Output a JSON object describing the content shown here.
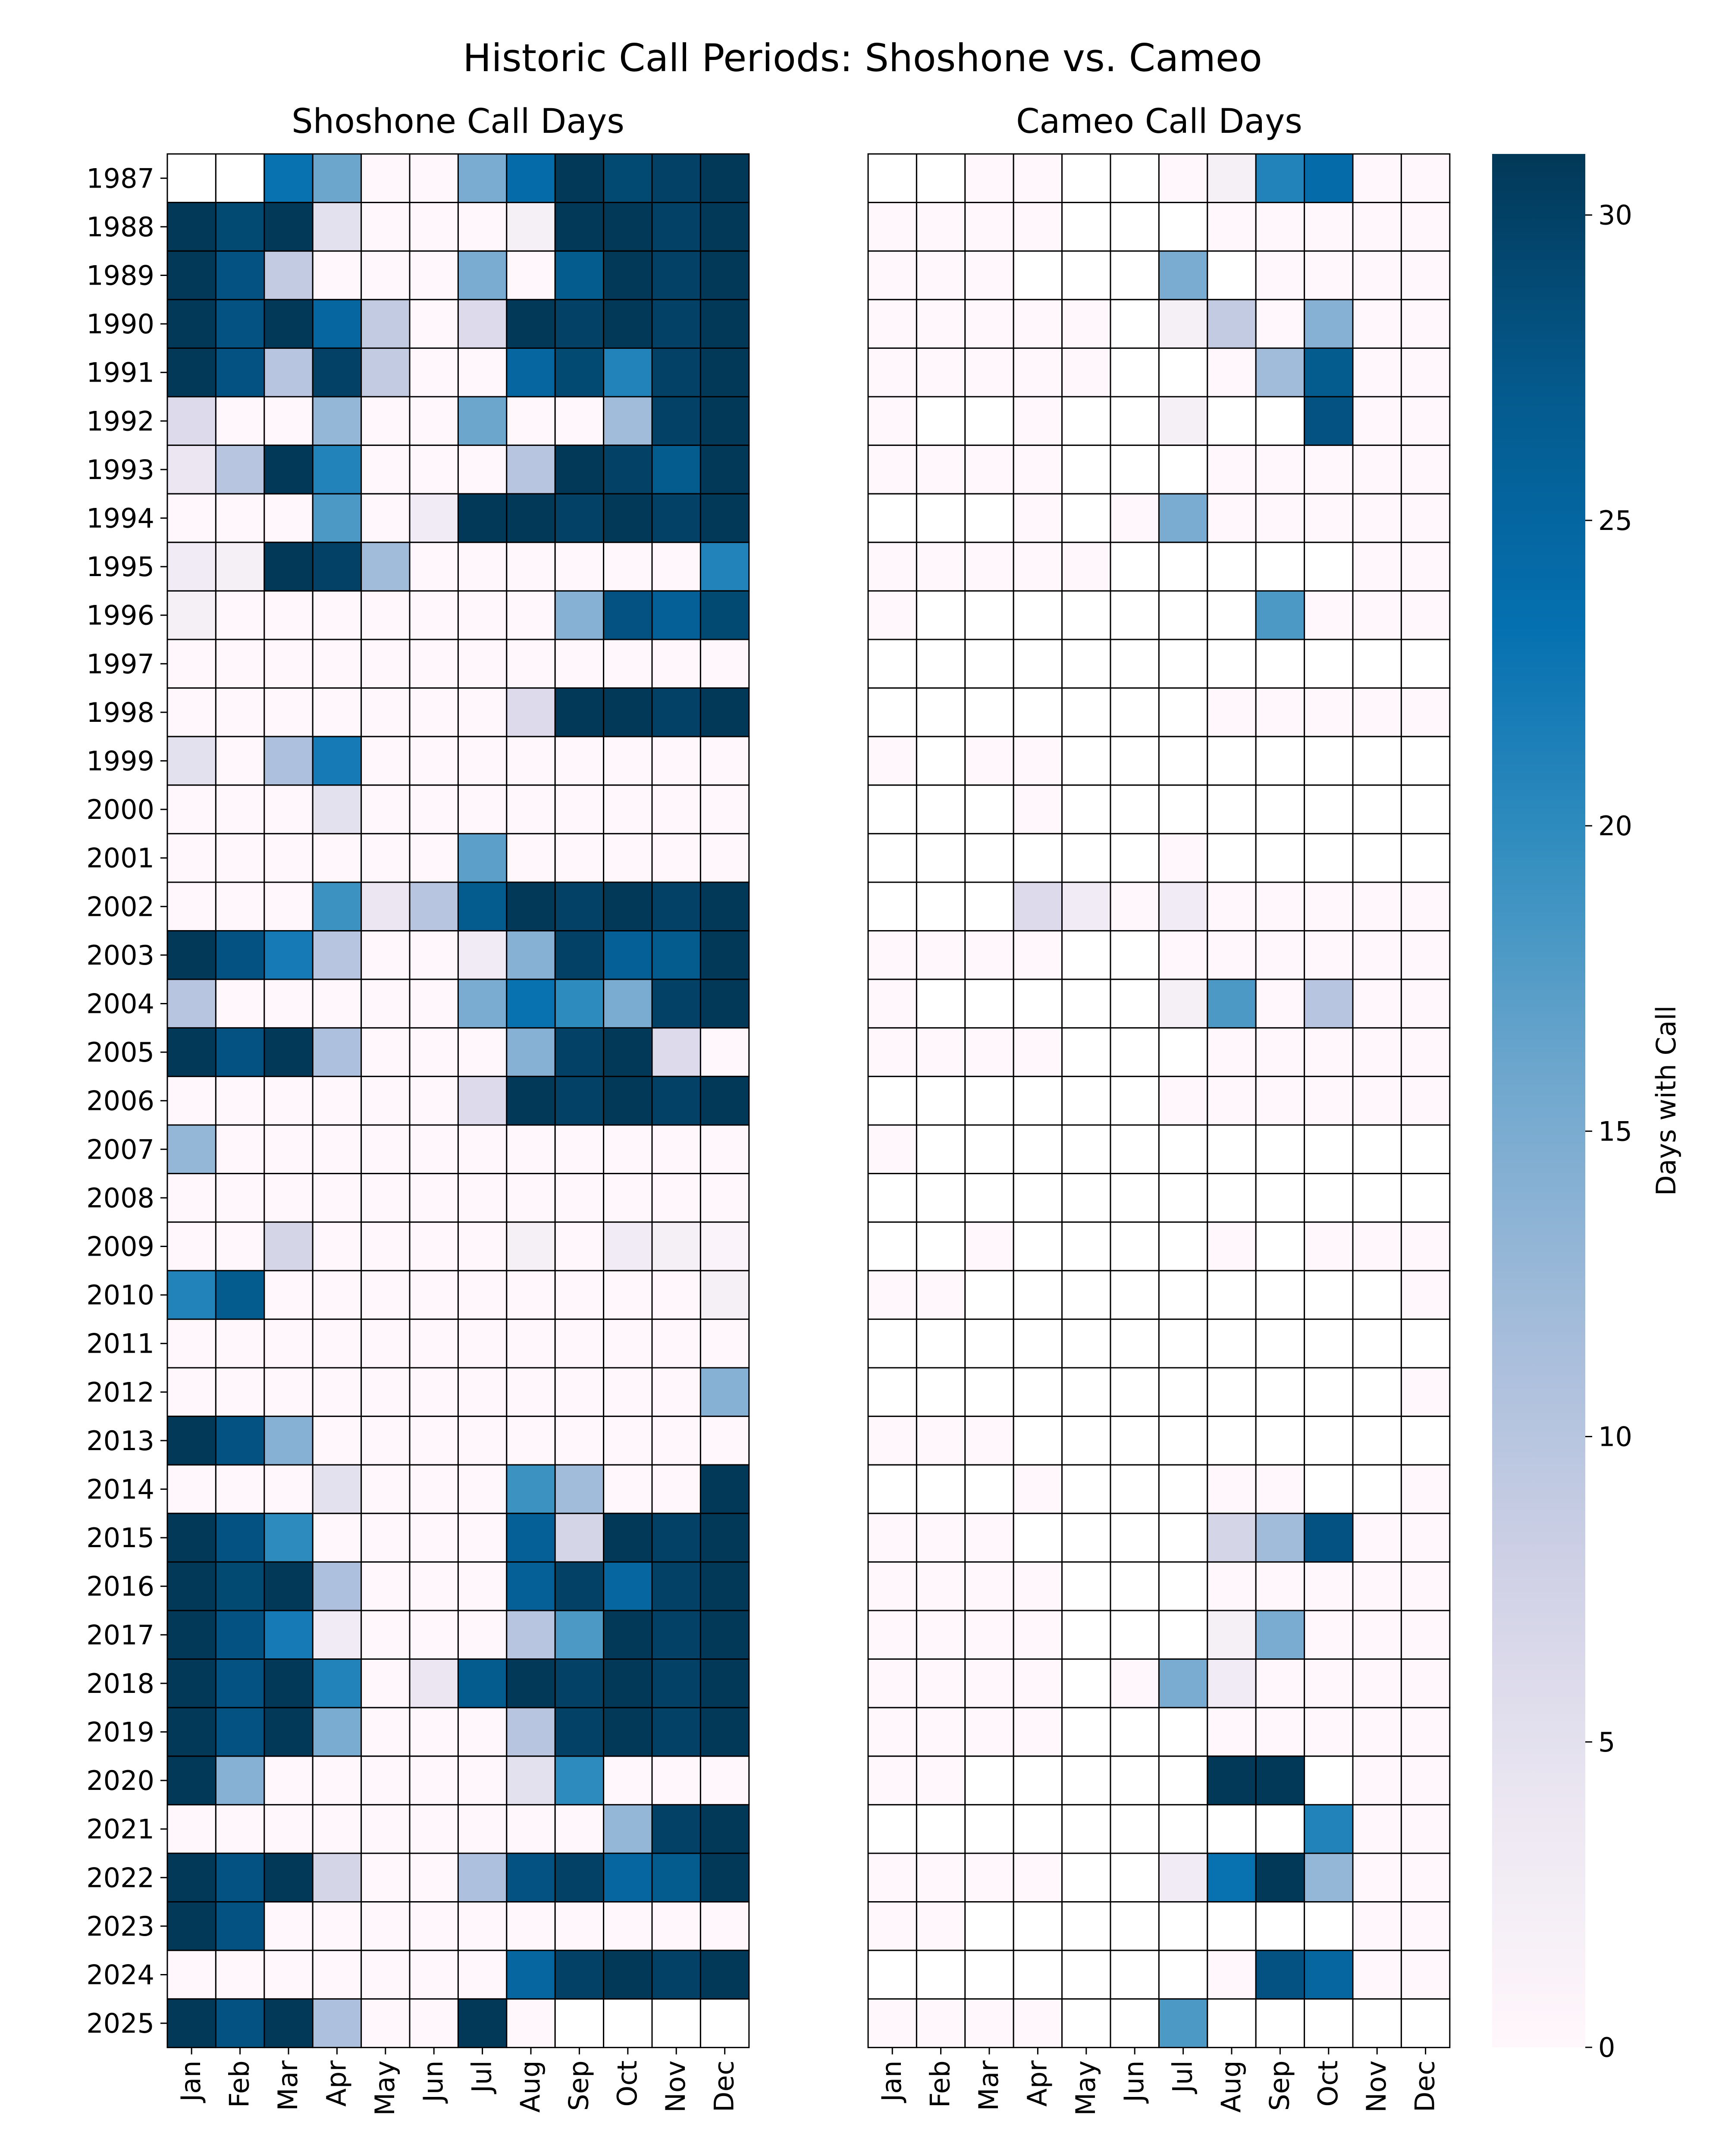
{
  "chart_data": {
    "type": "heatmap",
    "title": "Historic Call Periods: Shoshone vs. Cameo",
    "months": [
      "Jan",
      "Feb",
      "Mar",
      "Apr",
      "May",
      "Jun",
      "Jul",
      "Aug",
      "Sep",
      "Oct",
      "Nov",
      "Dec"
    ],
    "years": [
      "1987",
      "1988",
      "1989",
      "1990",
      "1991",
      "1992",
      "1993",
      "1994",
      "1995",
      "1996",
      "1997",
      "1998",
      "1999",
      "2000",
      "2001",
      "2002",
      "2003",
      "2004",
      "2005",
      "2006",
      "2007",
      "2008",
      "2009",
      "2010",
      "2011",
      "2012",
      "2013",
      "2014",
      "2015",
      "2016",
      "2017",
      "2018",
      "2019",
      "2020",
      "2021",
      "2022",
      "2023",
      "2024",
      "2025"
    ],
    "colorbar": {
      "label": "Days with Call",
      "range": [
        0,
        31
      ],
      "ticks": [
        0,
        5,
        10,
        15,
        20,
        25,
        30
      ],
      "colors": [
        "#fff7fb",
        "#ece7f2",
        "#d0d1e6",
        "#a6bddb",
        "#74a9cf",
        "#3690c0",
        "#0570b0",
        "#045a8d",
        "#023858"
      ]
    },
    "panels": [
      {
        "title": "Shoshone Call Days",
        "values": [
          [
            null,
            null,
            23,
            16,
            0,
            0,
            15,
            24,
            31,
            29,
            30,
            31
          ],
          [
            31,
            29,
            31,
            5,
            0,
            0,
            0,
            2,
            31,
            31,
            30,
            31
          ],
          [
            31,
            28,
            9,
            0,
            0,
            0,
            15,
            0,
            27,
            31,
            30,
            31
          ],
          [
            31,
            28,
            31,
            25,
            9,
            0,
            6,
            31,
            30,
            31,
            30,
            31
          ],
          [
            31,
            28,
            10,
            30,
            9,
            0,
            0,
            25,
            29,
            21,
            30,
            31
          ],
          [
            6,
            0,
            0,
            13,
            0,
            0,
            16,
            0,
            0,
            12,
            30,
            31
          ],
          [
            4,
            10,
            31,
            21,
            0,
            0,
            0,
            10,
            31,
            30,
            27,
            31
          ],
          [
            0,
            0,
            0,
            18,
            0,
            3,
            31,
            31,
            30,
            31,
            30,
            31
          ],
          [
            3,
            2,
            31,
            30,
            12,
            0,
            0,
            0,
            0,
            0,
            0,
            21
          ],
          [
            2,
            0,
            0,
            0,
            0,
            0,
            0,
            0,
            14,
            28,
            26,
            29
          ],
          [
            0,
            0,
            0,
            0,
            0,
            0,
            0,
            0,
            0,
            0,
            0,
            0
          ],
          [
            0,
            0,
            0,
            0,
            0,
            0,
            0,
            6,
            31,
            31,
            30,
            31
          ],
          [
            5,
            0,
            11,
            22,
            0,
            0,
            0,
            0,
            0,
            0,
            0,
            0
          ],
          [
            0,
            0,
            0,
            5,
            0,
            0,
            0,
            0,
            0,
            0,
            0,
            0
          ],
          [
            0,
            0,
            0,
            0,
            0,
            0,
            17,
            0,
            0,
            0,
            0,
            0
          ],
          [
            0,
            0,
            0,
            19,
            4,
            10,
            27,
            31,
            30,
            31,
            30,
            31
          ],
          [
            31,
            28,
            22,
            10,
            0,
            0,
            3,
            14,
            30,
            26,
            27,
            31
          ],
          [
            10,
            0,
            0,
            0,
            0,
            0,
            15,
            23,
            20,
            15,
            30,
            31
          ],
          [
            31,
            28,
            31,
            11,
            0,
            0,
            0,
            14,
            30,
            31,
            6,
            0
          ],
          [
            0,
            0,
            0,
            0,
            0,
            0,
            6,
            31,
            30,
            31,
            30,
            31
          ],
          [
            13,
            0,
            0,
            0,
            0,
            0,
            0,
            0,
            0,
            0,
            0,
            0
          ],
          [
            0,
            0,
            0,
            0,
            0,
            0,
            0,
            0,
            0,
            0,
            0,
            0
          ],
          [
            0,
            0,
            7,
            0,
            0,
            0,
            0,
            2,
            0,
            3,
            2,
            1
          ],
          [
            21,
            27,
            0,
            0,
            0,
            0,
            0,
            0,
            0,
            0,
            0,
            2
          ],
          [
            0,
            0,
            0,
            0,
            0,
            0,
            0,
            0,
            0,
            0,
            0,
            0
          ],
          [
            0,
            0,
            0,
            0,
            0,
            0,
            0,
            0,
            0,
            0,
            0,
            14
          ],
          [
            31,
            28,
            14,
            0,
            0,
            0,
            0,
            0,
            0,
            0,
            0,
            0
          ],
          [
            0,
            0,
            0,
            5,
            0,
            0,
            0,
            19,
            12,
            0,
            0,
            31
          ],
          [
            31,
            28,
            20,
            0,
            0,
            0,
            0,
            26,
            7,
            31,
            30,
            31
          ],
          [
            31,
            29,
            31,
            11,
            0,
            0,
            0,
            26,
            30,
            25,
            30,
            31
          ],
          [
            31,
            28,
            22,
            3,
            0,
            0,
            0,
            10,
            18,
            31,
            30,
            31
          ],
          [
            31,
            28,
            31,
            21,
            0,
            4,
            27,
            31,
            30,
            31,
            30,
            31
          ],
          [
            31,
            28,
            31,
            15,
            0,
            0,
            0,
            10,
            30,
            31,
            30,
            31
          ],
          [
            31,
            14,
            0,
            0,
            0,
            0,
            0,
            5,
            20,
            0,
            0,
            0
          ],
          [
            0,
            0,
            0,
            0,
            0,
            0,
            0,
            0,
            0,
            13,
            30,
            31
          ],
          [
            31,
            28,
            31,
            7,
            0,
            0,
            11,
            28,
            30,
            25,
            27,
            31
          ],
          [
            31,
            28,
            0,
            0,
            0,
            0,
            0,
            0,
            0,
            0,
            0,
            0
          ],
          [
            0,
            0,
            0,
            0,
            0,
            0,
            0,
            25,
            30,
            31,
            30,
            31
          ],
          [
            31,
            28,
            31,
            11,
            0,
            0,
            31,
            0,
            null,
            null,
            null,
            null
          ]
        ]
      },
      {
        "title": "Cameo Call Days",
        "values": [
          [
            null,
            null,
            0,
            0,
            null,
            null,
            0,
            2,
            21,
            24,
            0,
            0
          ],
          [
            0,
            0,
            0,
            0,
            null,
            null,
            null,
            0,
            0,
            0,
            0,
            0
          ],
          [
            0,
            0,
            0,
            null,
            null,
            null,
            15,
            null,
            0,
            0,
            0,
            0
          ],
          [
            0,
            0,
            0,
            0,
            0,
            null,
            2,
            9,
            0,
            14,
            0,
            0
          ],
          [
            0,
            0,
            0,
            0,
            0,
            null,
            null,
            0,
            12,
            27,
            0,
            0
          ],
          [
            0,
            null,
            null,
            0,
            null,
            null,
            2,
            null,
            null,
            28,
            0,
            0
          ],
          [
            0,
            0,
            0,
            0,
            null,
            null,
            null,
            0,
            0,
            0,
            0,
            0
          ],
          [
            null,
            null,
            null,
            0,
            null,
            0,
            15,
            0,
            0,
            0,
            0,
            0
          ],
          [
            0,
            0,
            0,
            0,
            0,
            null,
            null,
            null,
            null,
            null,
            0,
            0
          ],
          [
            0,
            null,
            null,
            null,
            null,
            null,
            null,
            null,
            18,
            0,
            0,
            0
          ],
          [
            null,
            null,
            null,
            null,
            null,
            null,
            null,
            null,
            null,
            null,
            null,
            null
          ],
          [
            null,
            null,
            null,
            null,
            null,
            null,
            null,
            0,
            0,
            0,
            0,
            0
          ],
          [
            0,
            null,
            0,
            0,
            null,
            null,
            null,
            null,
            null,
            null,
            null,
            null
          ],
          [
            null,
            null,
            null,
            0,
            null,
            null,
            null,
            null,
            null,
            null,
            null,
            null
          ],
          [
            null,
            null,
            null,
            null,
            null,
            null,
            0,
            null,
            null,
            null,
            null,
            null
          ],
          [
            null,
            null,
            null,
            6,
            3,
            0,
            3,
            0,
            0,
            0,
            0,
            0
          ],
          [
            0,
            0,
            0,
            0,
            null,
            null,
            0,
            0,
            0,
            0,
            0,
            0
          ],
          [
            0,
            null,
            null,
            null,
            null,
            null,
            2,
            18,
            0,
            10,
            0,
            0
          ],
          [
            0,
            0,
            0,
            0,
            null,
            null,
            null,
            0,
            0,
            0,
            0,
            0
          ],
          [
            null,
            null,
            null,
            null,
            null,
            null,
            0,
            0,
            0,
            0,
            0,
            0
          ],
          [
            0,
            null,
            null,
            null,
            null,
            null,
            null,
            null,
            null,
            null,
            null,
            null
          ],
          [
            null,
            null,
            null,
            null,
            null,
            null,
            null,
            null,
            null,
            null,
            null,
            null
          ],
          [
            null,
            null,
            0,
            null,
            null,
            null,
            null,
            0,
            null,
            0,
            0,
            0
          ],
          [
            0,
            0,
            null,
            null,
            null,
            null,
            null,
            null,
            null,
            null,
            null,
            0
          ],
          [
            null,
            null,
            null,
            null,
            null,
            null,
            null,
            null,
            null,
            null,
            null,
            null
          ],
          [
            null,
            null,
            null,
            null,
            null,
            null,
            null,
            null,
            null,
            null,
            null,
            0
          ],
          [
            0,
            0,
            0,
            null,
            null,
            null,
            null,
            null,
            null,
            null,
            null,
            null
          ],
          [
            null,
            null,
            null,
            0,
            null,
            null,
            null,
            0,
            0,
            null,
            null,
            0
          ],
          [
            0,
            0,
            0,
            null,
            null,
            null,
            null,
            7,
            12,
            28,
            0,
            0
          ],
          [
            0,
            0,
            0,
            0,
            null,
            null,
            null,
            0,
            0,
            0,
            0,
            0
          ],
          [
            0,
            0,
            0,
            0,
            null,
            null,
            null,
            2,
            15,
            0,
            0,
            0
          ],
          [
            0,
            0,
            0,
            0,
            null,
            0,
            15,
            3,
            0,
            0,
            0,
            0
          ],
          [
            0,
            0,
            0,
            0,
            null,
            null,
            null,
            0,
            0,
            0,
            0,
            0
          ],
          [
            0,
            0,
            null,
            null,
            null,
            null,
            null,
            31,
            31,
            null,
            0,
            0
          ],
          [
            null,
            null,
            null,
            null,
            null,
            null,
            null,
            null,
            null,
            21,
            0,
            0
          ],
          [
            0,
            0,
            0,
            0,
            null,
            null,
            3,
            23,
            31,
            13,
            0,
            0
          ],
          [
            0,
            0,
            null,
            null,
            null,
            null,
            null,
            null,
            null,
            null,
            0,
            0
          ],
          [
            null,
            null,
            null,
            null,
            null,
            null,
            null,
            0,
            28,
            25,
            0,
            0
          ],
          [
            0,
            0,
            0,
            0,
            null,
            null,
            18,
            null,
            null,
            null,
            null,
            null
          ]
        ]
      }
    ]
  }
}
